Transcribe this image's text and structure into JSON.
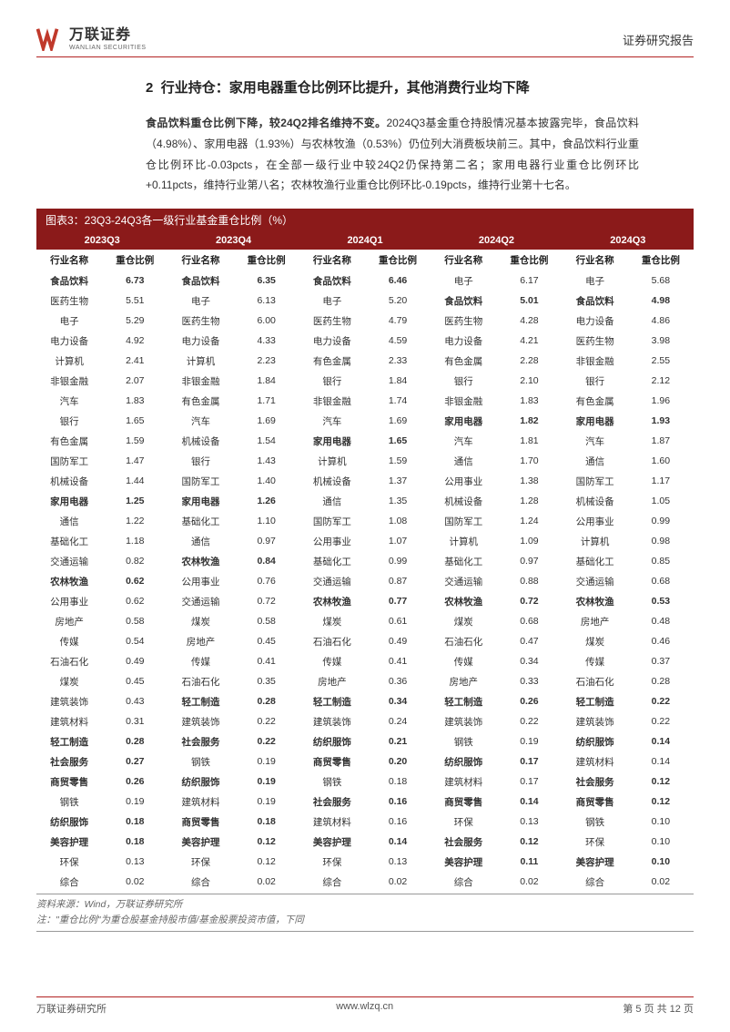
{
  "header": {
    "company_cn": "万联证券",
    "company_en": "WANLIAN SECURITIES",
    "report_type": "证券研究报告"
  },
  "section": {
    "number": "2",
    "title": "行业持仓：家用电器重仓比例环比提升，其他消费行业均下降"
  },
  "paragraph": {
    "lead_bold": "食品饮料重仓比例下降，较24Q2排名维持不变。",
    "text": "2024Q3基金重仓持股情况基本披露完毕，食品饮料（4.98%）、家用电器（1.93%）与农林牧渔（0.53%）仍位列大消费板块前三。其中，食品饮料行业重仓比例环比-0.03pcts，在全部一级行业中较24Q2仍保持第二名；家用电器行业重仓比例环比+0.11pcts，维持行业第八名；农林牧渔行业重仓比例环比-0.19pcts，维持行业第十七名。"
  },
  "chart": {
    "title": "图表3：23Q3-24Q3各一级行业基金重仓比例（%）",
    "quarters": [
      "2023Q3",
      "2023Q4",
      "2024Q1",
      "2024Q2",
      "2024Q3"
    ],
    "col_headers": {
      "name": "行业名称",
      "ratio": "重仓比例"
    },
    "bold_names": [
      "食品饮料",
      "家用电器",
      "农林牧渔",
      "轻工制造",
      "社会服务",
      "商贸零售",
      "纺织服饰",
      "美容护理"
    ],
    "colors": {
      "header_bg": "#8b1a1a",
      "header_fg": "#ffffff",
      "border": "#b22222",
      "text": "#333333"
    },
    "rows": [
      {
        "q": [
          [
            "食品饮料",
            "6.73"
          ],
          [
            "食品饮料",
            "6.35"
          ],
          [
            "食品饮料",
            "6.46"
          ],
          [
            "电子",
            "6.17"
          ],
          [
            "电子",
            "5.68"
          ]
        ]
      },
      {
        "q": [
          [
            "医药生物",
            "5.51"
          ],
          [
            "电子",
            "6.13"
          ],
          [
            "电子",
            "5.20"
          ],
          [
            "食品饮料",
            "5.01"
          ],
          [
            "食品饮料",
            "4.98"
          ]
        ]
      },
      {
        "q": [
          [
            "电子",
            "5.29"
          ],
          [
            "医药生物",
            "6.00"
          ],
          [
            "医药生物",
            "4.79"
          ],
          [
            "医药生物",
            "4.28"
          ],
          [
            "电力设备",
            "4.86"
          ]
        ]
      },
      {
        "q": [
          [
            "电力设备",
            "4.92"
          ],
          [
            "电力设备",
            "4.33"
          ],
          [
            "电力设备",
            "4.59"
          ],
          [
            "电力设备",
            "4.21"
          ],
          [
            "医药生物",
            "3.98"
          ]
        ]
      },
      {
        "q": [
          [
            "计算机",
            "2.41"
          ],
          [
            "计算机",
            "2.23"
          ],
          [
            "有色金属",
            "2.33"
          ],
          [
            "有色金属",
            "2.28"
          ],
          [
            "非银金融",
            "2.55"
          ]
        ]
      },
      {
        "q": [
          [
            "非银金融",
            "2.07"
          ],
          [
            "非银金融",
            "1.84"
          ],
          [
            "银行",
            "1.84"
          ],
          [
            "银行",
            "2.10"
          ],
          [
            "银行",
            "2.12"
          ]
        ]
      },
      {
        "q": [
          [
            "汽车",
            "1.83"
          ],
          [
            "有色金属",
            "1.71"
          ],
          [
            "非银金融",
            "1.74"
          ],
          [
            "非银金融",
            "1.83"
          ],
          [
            "有色金属",
            "1.96"
          ]
        ]
      },
      {
        "q": [
          [
            "银行",
            "1.65"
          ],
          [
            "汽车",
            "1.69"
          ],
          [
            "汽车",
            "1.69"
          ],
          [
            "家用电器",
            "1.82"
          ],
          [
            "家用电器",
            "1.93"
          ]
        ]
      },
      {
        "q": [
          [
            "有色金属",
            "1.59"
          ],
          [
            "机械设备",
            "1.54"
          ],
          [
            "家用电器",
            "1.65"
          ],
          [
            "汽车",
            "1.81"
          ],
          [
            "汽车",
            "1.87"
          ]
        ]
      },
      {
        "q": [
          [
            "国防军工",
            "1.47"
          ],
          [
            "银行",
            "1.43"
          ],
          [
            "计算机",
            "1.59"
          ],
          [
            "通信",
            "1.70"
          ],
          [
            "通信",
            "1.60"
          ]
        ]
      },
      {
        "q": [
          [
            "机械设备",
            "1.44"
          ],
          [
            "国防军工",
            "1.40"
          ],
          [
            "机械设备",
            "1.37"
          ],
          [
            "公用事业",
            "1.38"
          ],
          [
            "国防军工",
            "1.17"
          ]
        ]
      },
      {
        "q": [
          [
            "家用电器",
            "1.25"
          ],
          [
            "家用电器",
            "1.26"
          ],
          [
            "通信",
            "1.35"
          ],
          [
            "机械设备",
            "1.28"
          ],
          [
            "机械设备",
            "1.05"
          ]
        ]
      },
      {
        "q": [
          [
            "通信",
            "1.22"
          ],
          [
            "基础化工",
            "1.10"
          ],
          [
            "国防军工",
            "1.08"
          ],
          [
            "国防军工",
            "1.24"
          ],
          [
            "公用事业",
            "0.99"
          ]
        ]
      },
      {
        "q": [
          [
            "基础化工",
            "1.18"
          ],
          [
            "通信",
            "0.97"
          ],
          [
            "公用事业",
            "1.07"
          ],
          [
            "计算机",
            "1.09"
          ],
          [
            "计算机",
            "0.98"
          ]
        ]
      },
      {
        "q": [
          [
            "交通运输",
            "0.82"
          ],
          [
            "农林牧渔",
            "0.84"
          ],
          [
            "基础化工",
            "0.99"
          ],
          [
            "基础化工",
            "0.97"
          ],
          [
            "基础化工",
            "0.85"
          ]
        ]
      },
      {
        "q": [
          [
            "农林牧渔",
            "0.62"
          ],
          [
            "公用事业",
            "0.76"
          ],
          [
            "交通运输",
            "0.87"
          ],
          [
            "交通运输",
            "0.88"
          ],
          [
            "交通运输",
            "0.68"
          ]
        ]
      },
      {
        "q": [
          [
            "公用事业",
            "0.62"
          ],
          [
            "交通运输",
            "0.72"
          ],
          [
            "农林牧渔",
            "0.77"
          ],
          [
            "农林牧渔",
            "0.72"
          ],
          [
            "农林牧渔",
            "0.53"
          ]
        ]
      },
      {
        "q": [
          [
            "房地产",
            "0.58"
          ],
          [
            "煤炭",
            "0.58"
          ],
          [
            "煤炭",
            "0.61"
          ],
          [
            "煤炭",
            "0.68"
          ],
          [
            "房地产",
            "0.48"
          ]
        ]
      },
      {
        "q": [
          [
            "传媒",
            "0.54"
          ],
          [
            "房地产",
            "0.45"
          ],
          [
            "石油石化",
            "0.49"
          ],
          [
            "石油石化",
            "0.47"
          ],
          [
            "煤炭",
            "0.46"
          ]
        ]
      },
      {
        "q": [
          [
            "石油石化",
            "0.49"
          ],
          [
            "传媒",
            "0.41"
          ],
          [
            "传媒",
            "0.41"
          ],
          [
            "传媒",
            "0.34"
          ],
          [
            "传媒",
            "0.37"
          ]
        ]
      },
      {
        "q": [
          [
            "煤炭",
            "0.45"
          ],
          [
            "石油石化",
            "0.35"
          ],
          [
            "房地产",
            "0.36"
          ],
          [
            "房地产",
            "0.33"
          ],
          [
            "石油石化",
            "0.28"
          ]
        ]
      },
      {
        "q": [
          [
            "建筑装饰",
            "0.43"
          ],
          [
            "轻工制造",
            "0.28"
          ],
          [
            "轻工制造",
            "0.34"
          ],
          [
            "轻工制造",
            "0.26"
          ],
          [
            "轻工制造",
            "0.22"
          ]
        ]
      },
      {
        "q": [
          [
            "建筑材料",
            "0.31"
          ],
          [
            "建筑装饰",
            "0.22"
          ],
          [
            "建筑装饰",
            "0.24"
          ],
          [
            "建筑装饰",
            "0.22"
          ],
          [
            "建筑装饰",
            "0.22"
          ]
        ]
      },
      {
        "q": [
          [
            "轻工制造",
            "0.28"
          ],
          [
            "社会服务",
            "0.22"
          ],
          [
            "纺织服饰",
            "0.21"
          ],
          [
            "钢铁",
            "0.19"
          ],
          [
            "纺织服饰",
            "0.14"
          ]
        ]
      },
      {
        "q": [
          [
            "社会服务",
            "0.27"
          ],
          [
            "钢铁",
            "0.19"
          ],
          [
            "商贸零售",
            "0.20"
          ],
          [
            "纺织服饰",
            "0.17"
          ],
          [
            "建筑材料",
            "0.14"
          ]
        ]
      },
      {
        "q": [
          [
            "商贸零售",
            "0.26"
          ],
          [
            "纺织服饰",
            "0.19"
          ],
          [
            "钢铁",
            "0.18"
          ],
          [
            "建筑材料",
            "0.17"
          ],
          [
            "社会服务",
            "0.12"
          ]
        ]
      },
      {
        "q": [
          [
            "钢铁",
            "0.19"
          ],
          [
            "建筑材料",
            "0.19"
          ],
          [
            "社会服务",
            "0.16"
          ],
          [
            "商贸零售",
            "0.14"
          ],
          [
            "商贸零售",
            "0.12"
          ]
        ]
      },
      {
        "q": [
          [
            "纺织服饰",
            "0.18"
          ],
          [
            "商贸零售",
            "0.18"
          ],
          [
            "建筑材料",
            "0.16"
          ],
          [
            "环保",
            "0.13"
          ],
          [
            "钢铁",
            "0.10"
          ]
        ]
      },
      {
        "q": [
          [
            "美容护理",
            "0.18"
          ],
          [
            "美容护理",
            "0.12"
          ],
          [
            "美容护理",
            "0.14"
          ],
          [
            "社会服务",
            "0.12"
          ],
          [
            "环保",
            "0.10"
          ]
        ]
      },
      {
        "q": [
          [
            "环保",
            "0.13"
          ],
          [
            "环保",
            "0.12"
          ],
          [
            "环保",
            "0.13"
          ],
          [
            "美容护理",
            "0.11"
          ],
          [
            "美容护理",
            "0.10"
          ]
        ]
      },
      {
        "q": [
          [
            "综合",
            "0.02"
          ],
          [
            "综合",
            "0.02"
          ],
          [
            "综合",
            "0.02"
          ],
          [
            "综合",
            "0.02"
          ],
          [
            "综合",
            "0.02"
          ]
        ]
      }
    ]
  },
  "source": {
    "line1": "资料来源：Wind，万联证券研究所",
    "line2": "注：\"重仓比例\"为重仓股基金持股市值/基金股票投资市值，下同"
  },
  "footer": {
    "left": "万联证券研究所",
    "center": "www.wlzq.cn",
    "right": "第 5 页 共 12 页"
  }
}
